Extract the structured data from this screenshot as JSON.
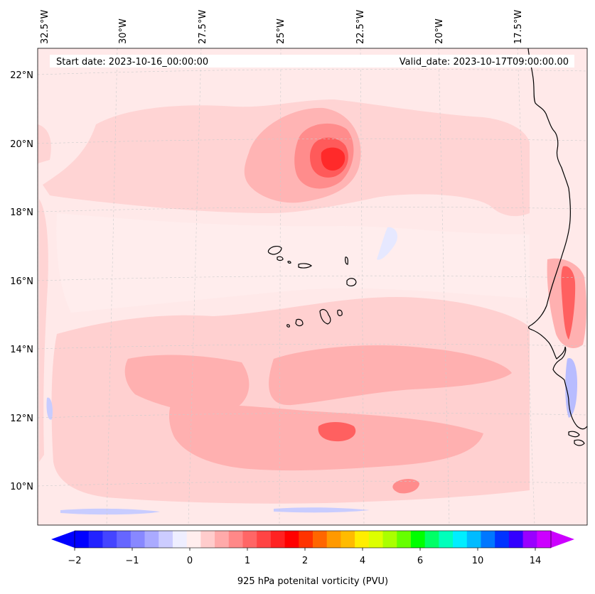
{
  "header": {
    "start_date": "Start date: 2023-10-16_00:00:00",
    "valid_date": "Valid_date: 2023-10-17T09:00:00.00"
  },
  "map": {
    "lon_labels": [
      "32.5°W",
      "30°W",
      "27.5°W",
      "25°W",
      "22.5°W",
      "20°W",
      "17.5°W"
    ],
    "lat_labels": [
      "22°N",
      "20°N",
      "18°N",
      "16°N",
      "14°N",
      "12°N",
      "10°N"
    ],
    "grid": true,
    "extent": {
      "lon_min": -33,
      "lon_max": -15.2,
      "lat_min": 8.9,
      "lat_max": 22.8
    }
  },
  "colorbar": {
    "label": "925 hPa potenital vorticity (PVU)",
    "tick_labels": [
      "−2",
      "−1",
      "0",
      "1",
      "2",
      "4",
      "6",
      "10",
      "14"
    ],
    "extend": "both",
    "colors": [
      "#0000ff",
      "#2222ff",
      "#4444ff",
      "#6666ff",
      "#8888ff",
      "#aaaaff",
      "#ccccff",
      "#eeeeff",
      "#ffeeee",
      "#ffcccc",
      "#ffaaaa",
      "#ff8888",
      "#ff6666",
      "#ff4444",
      "#ff2222",
      "#ff0000",
      "#ff3300",
      "#ff6600",
      "#ff9900",
      "#ffbb00",
      "#ffee00",
      "#ddff00",
      "#aaff00",
      "#66ff00",
      "#00ff00",
      "#00ff66",
      "#00ffbb",
      "#00eeff",
      "#00bbff",
      "#0077ff",
      "#0033ff",
      "#3300ff",
      "#9900ff",
      "#cc00ff"
    ],
    "extend_low_color": "#0000ff",
    "extend_high_color": "#cc00ff"
  },
  "field_colors": {
    "background": "#ffe8e8",
    "level1": "#ffd2d2",
    "level2": "#ffb4b4",
    "level3": "#ff8c8c",
    "level4": "#ff5a5a",
    "level5": "#ff2a2a",
    "negative": "#dfe3ff",
    "negative2": "#b8bcff",
    "coast": "#000000"
  }
}
